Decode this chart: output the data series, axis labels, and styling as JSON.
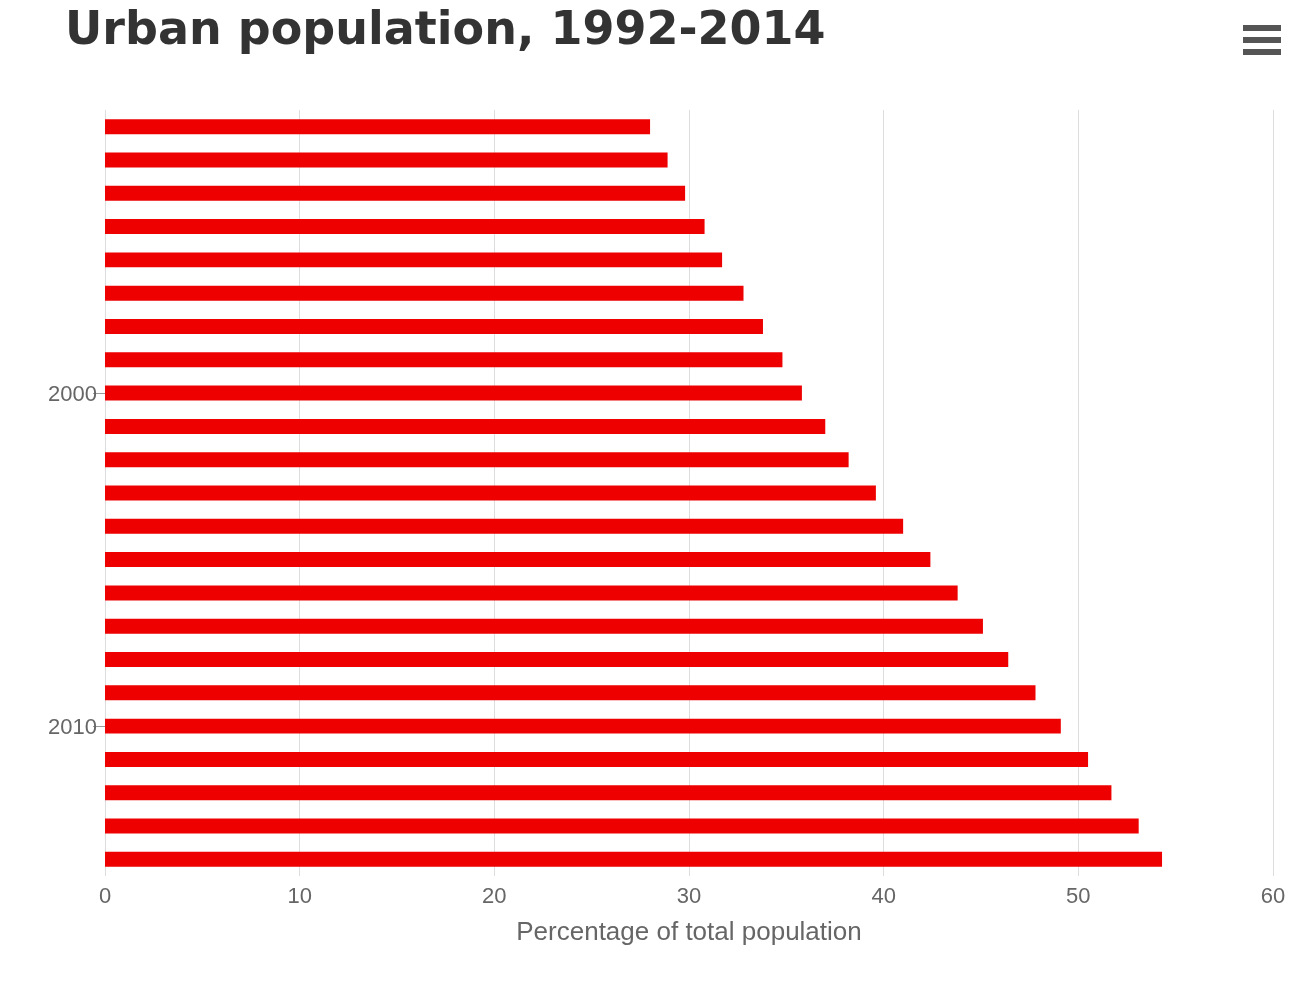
{
  "chart_data": {
    "type": "bar",
    "orientation": "horizontal",
    "title": "Urban population, 1992-2014",
    "xlabel": "Percentage of total population",
    "categories": [
      null,
      null,
      null,
      null,
      null,
      null,
      null,
      null,
      "2000",
      null,
      null,
      null,
      null,
      null,
      null,
      null,
      null,
      null,
      "2010",
      null,
      null,
      null,
      null
    ],
    "values": [
      28.0,
      28.9,
      29.8,
      30.8,
      31.7,
      32.8,
      33.8,
      34.8,
      35.8,
      37.0,
      38.2,
      39.6,
      41.0,
      42.4,
      43.8,
      45.1,
      46.4,
      47.8,
      49.1,
      50.5,
      51.7,
      53.1,
      54.3
    ],
    "color": "#ee0000",
    "xlim": [
      0,
      60
    ],
    "xticks": [
      0,
      10,
      20,
      30,
      40,
      50,
      60
    ],
    "grid": "x"
  }
}
